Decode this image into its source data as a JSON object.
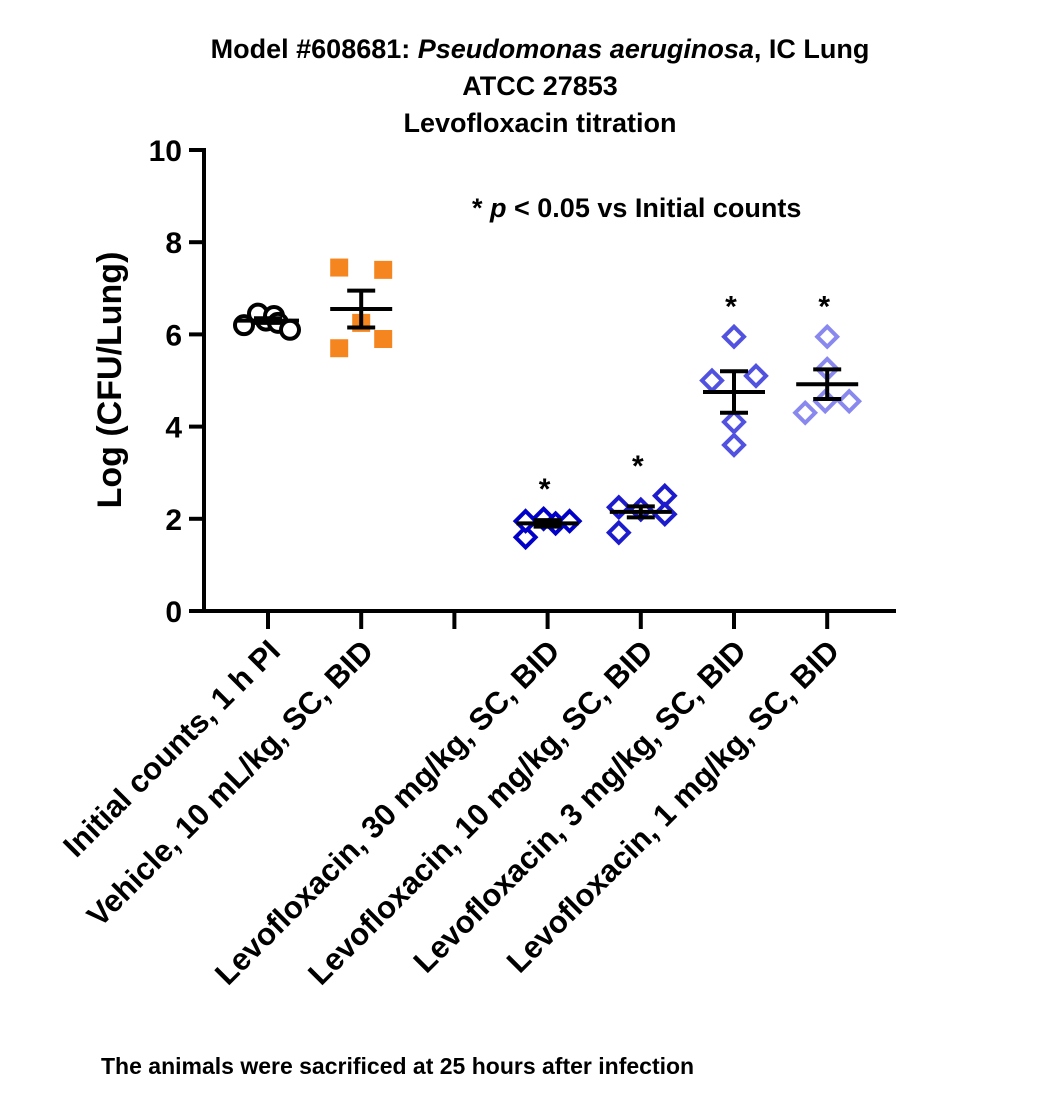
{
  "chart_data": {
    "type": "scatter",
    "title_lines": [
      {
        "prefix": "Model #608681: ",
        "italic": "Pseudomonas aeruginosa",
        "suffix": ", IC Lung"
      },
      {
        "text": "ATCC 27853"
      },
      {
        "text": "Levofloxacin titration"
      }
    ],
    "ylabel": "Log (CFU/Lung)",
    "xlabel": "",
    "ylim": [
      0,
      10
    ],
    "yticks": [
      "0",
      "2",
      "4",
      "6",
      "8",
      "10"
    ],
    "annotation": {
      "star": "* ",
      "p": "p",
      "rest": " < 0.05 vs Initial counts"
    },
    "footnote": "The animals were sacrificed at 25 hours after infection",
    "groups": [
      {
        "label": "Initial counts, 1 h PI",
        "slot": 0,
        "marker": "circle",
        "color": "#000000",
        "points": [
          6.3,
          6.45,
          6.2,
          6.4,
          6.25,
          6.1
        ],
        "mean": 6.3,
        "sem": 0.05,
        "significant": false
      },
      {
        "label": "Vehicle, 10 mL/kg, SC, BID",
        "slot": 1,
        "marker": "square",
        "color": "#f5861f",
        "points": [
          7.45,
          7.4,
          6.25,
          5.7,
          5.9
        ],
        "mean": 6.55,
        "sem": 0.4,
        "significant": false
      },
      {
        "label": "",
        "slot": 2,
        "marker": "none",
        "color": "#000000",
        "points": [],
        "mean": null,
        "sem": null,
        "significant": false
      },
      {
        "label": "Levofloxacin, 30 mg/kg, SC, BID",
        "slot": 3,
        "marker": "diamond",
        "color": "#0000c8",
        "points": [
          2.0,
          1.6,
          1.95,
          1.9,
          1.95
        ],
        "mean": 1.9,
        "sem": 0.07,
        "significant": true
      },
      {
        "label": "Levofloxacin, 10 mg/kg, SC, BID",
        "slot": 4,
        "marker": "diamond",
        "color": "#1c1ccc",
        "points": [
          2.25,
          1.7,
          2.2,
          2.5,
          2.1
        ],
        "mean": 2.15,
        "sem": 0.12,
        "significant": true
      },
      {
        "label": "Levofloxacin, 3 mg/kg, SC, BID",
        "slot": 5,
        "marker": "diamond",
        "color": "#5252e0",
        "points": [
          5.95,
          5.0,
          5.1,
          4.1,
          3.6
        ],
        "mean": 4.75,
        "sem": 0.45,
        "significant": true
      },
      {
        "label": "Levofloxacin, 1 mg/kg, SC, BID",
        "slot": 6,
        "marker": "diamond",
        "color": "#8888ee",
        "points": [
          5.95,
          5.25,
          4.3,
          4.55,
          4.55
        ],
        "mean": 4.92,
        "sem": 0.32,
        "significant": true
      }
    ]
  }
}
